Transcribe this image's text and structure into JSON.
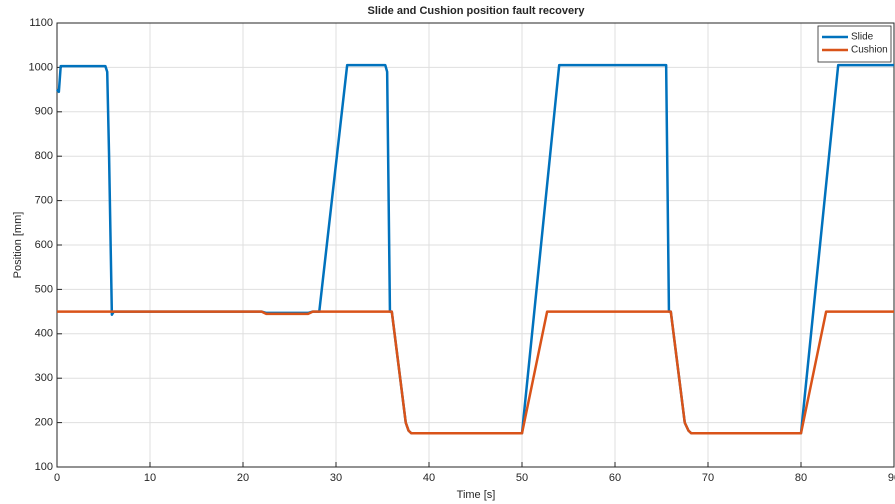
{
  "chart_data": {
    "type": "line",
    "title": "Slide and Cushion position fault recovery",
    "x_label": "Time [s]",
    "y_label": "Position [mm]",
    "xlim": [
      0,
      90
    ],
    "xticks": [
      0,
      10,
      20,
      30,
      40,
      50,
      60,
      70,
      80,
      90
    ],
    "ylim": [
      100,
      1100
    ],
    "yticks": [
      100,
      200,
      300,
      400,
      500,
      600,
      700,
      800,
      900,
      1000,
      1100
    ],
    "grid": true,
    "legend": "upper-right",
    "series": [
      {
        "name": "Slide",
        "color": "#0072bd",
        "x": [
          0,
          0.2,
          0.4,
          5.2,
          5.4,
          5.6,
          5.9,
          6.1,
          22,
          22.5,
          27,
          27.5,
          28.2,
          31.2,
          35.3,
          35.5,
          35.8,
          36,
          37.5,
          37.8,
          38.1,
          50,
          54,
          65.5,
          65.8,
          66,
          67.5,
          67.9,
          68.2,
          80,
          84,
          90
        ],
        "values": [
          950,
          945,
          1003,
          1003,
          990,
          800,
          443,
          450,
          450,
          447,
          447,
          450,
          450,
          1005,
          1005,
          990,
          450,
          450,
          200,
          182,
          176,
          176,
          1005,
          1005,
          450,
          450,
          200,
          182,
          176,
          176,
          1005,
          1005
        ]
      },
      {
        "name": "Cushion",
        "color": "#d95319",
        "x": [
          0,
          22,
          22.5,
          27,
          27.5,
          36,
          37.5,
          37.8,
          38.1,
          50,
          52.7,
          66,
          67.5,
          67.9,
          68.2,
          80,
          82.7,
          90
        ],
        "values": [
          450,
          450,
          445,
          445,
          450,
          450,
          200,
          182,
          176,
          176,
          450,
          450,
          200,
          182,
          176,
          176,
          450,
          450
        ]
      }
    ]
  }
}
